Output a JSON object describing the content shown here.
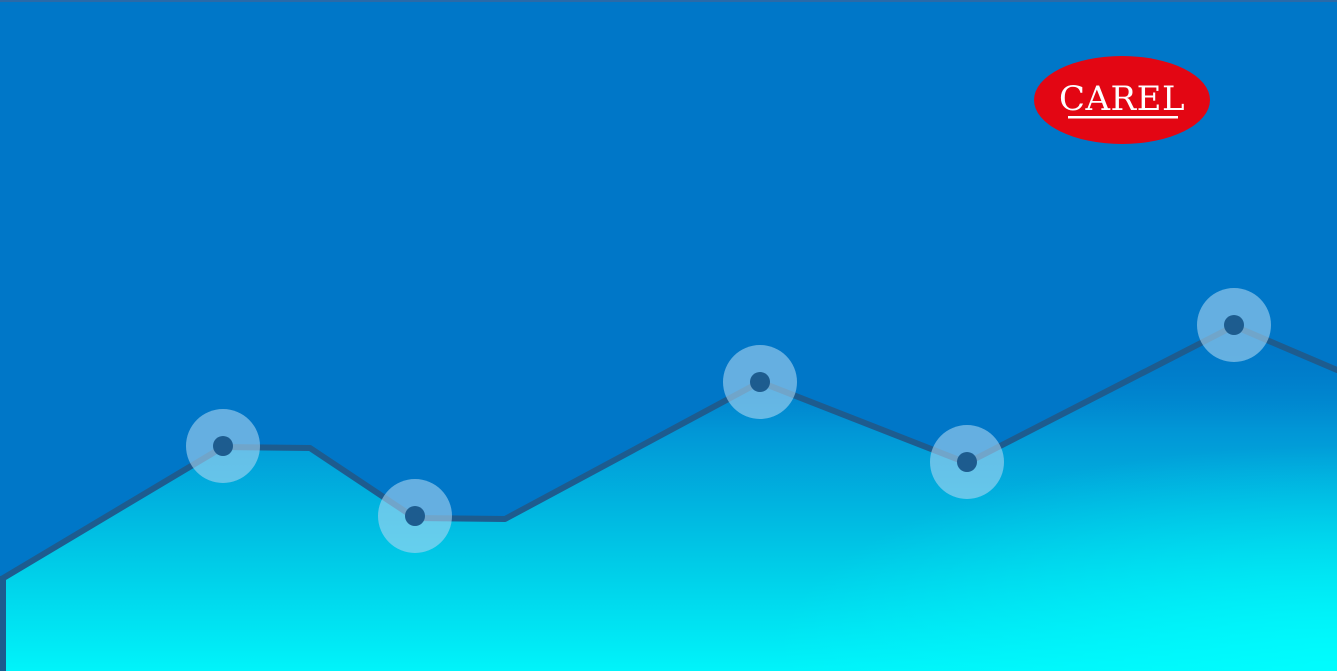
{
  "brand": {
    "logo_text": "CAREL",
    "logo_color": "#e30613"
  },
  "colors": {
    "background": "#0077c8",
    "line": "#1d5c8f",
    "marker_halo": "#8fc6ea",
    "area_light": "#00ffff"
  },
  "icons": {
    "brand_logo": "carel-logo-icon"
  }
}
